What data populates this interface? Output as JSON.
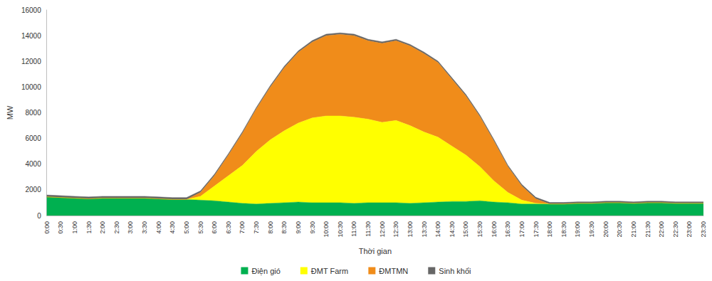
{
  "chart_data": {
    "type": "area",
    "stacked": true,
    "x_label": "Thời gian",
    "y_label": "MW",
    "categories": [
      "0:00",
      "0:30",
      "1:00",
      "1:30",
      "2:00",
      "2:30",
      "3:00",
      "3:30",
      "4:00",
      "4:30",
      "5:00",
      "5:30",
      "6:00",
      "6:30",
      "7:00",
      "7:30",
      "8:00",
      "8:30",
      "9:00",
      "9:30",
      "10:00",
      "10:30",
      "11:00",
      "11:30",
      "12:00",
      "12:30",
      "13:00",
      "13:30",
      "14:00",
      "14:30",
      "15:00",
      "15:30",
      "16:00",
      "16:30",
      "17:00",
      "17:30",
      "18:00",
      "18:30",
      "19:00",
      "19:30",
      "20:00",
      "20:30",
      "21:00",
      "21:30",
      "22:00",
      "22:30",
      "23:00",
      "23:30"
    ],
    "series": [
      {
        "name": "Điện gió",
        "color": "#00b050",
        "values": [
          1450,
          1400,
          1350,
          1300,
          1350,
          1350,
          1350,
          1350,
          1300,
          1250,
          1250,
          1200,
          1150,
          1050,
          950,
          900,
          950,
          1000,
          1050,
          1000,
          1000,
          1000,
          950,
          1000,
          1000,
          1000,
          950,
          1000,
          1050,
          1100,
          1100,
          1150,
          1050,
          1000,
          900,
          900,
          900,
          900,
          950,
          950,
          1000,
          1000,
          950,
          1000,
          1000,
          950,
          950,
          950
        ]
      },
      {
        "name": "ĐMT Farm",
        "color": "#ffff00",
        "values": [
          0,
          0,
          0,
          0,
          0,
          0,
          0,
          0,
          0,
          0,
          0,
          300,
          1150,
          2050,
          2950,
          4100,
          4950,
          5600,
          6150,
          6600,
          6750,
          6750,
          6700,
          6500,
          6250,
          6400,
          6050,
          5500,
          5050,
          4300,
          3600,
          2650,
          1650,
          800,
          300,
          50,
          0,
          0,
          0,
          0,
          0,
          0,
          0,
          0,
          0,
          0,
          0,
          0
        ]
      },
      {
        "name": "ĐMTMN",
        "color": "#f08c1a",
        "values": [
          0,
          0,
          0,
          0,
          0,
          0,
          0,
          0,
          0,
          0,
          0,
          300,
          800,
          1600,
          2500,
          3300,
          4100,
          4900,
          5500,
          5900,
          6250,
          6350,
          6350,
          6100,
          6150,
          6200,
          6200,
          6100,
          5800,
          5200,
          4600,
          3900,
          3100,
          2000,
          1100,
          350,
          0,
          0,
          0,
          0,
          0,
          0,
          0,
          0,
          0,
          0,
          0,
          0
        ]
      },
      {
        "name": "Sinh khối",
        "color": "#666666",
        "values": [
          150,
          150,
          150,
          150,
          150,
          150,
          150,
          150,
          150,
          150,
          150,
          120,
          120,
          120,
          120,
          120,
          120,
          120,
          120,
          120,
          120,
          120,
          120,
          120,
          120,
          120,
          120,
          120,
          120,
          120,
          120,
          120,
          120,
          120,
          120,
          120,
          120,
          120,
          120,
          120,
          120,
          120,
          120,
          120,
          120,
          120,
          120,
          120
        ]
      }
    ],
    "ylim": [
      0,
      16000
    ],
    "yticks": [
      0,
      2000,
      4000,
      6000,
      8000,
      10000,
      12000,
      14000,
      16000
    ],
    "grid": false,
    "legend": "bottom"
  }
}
